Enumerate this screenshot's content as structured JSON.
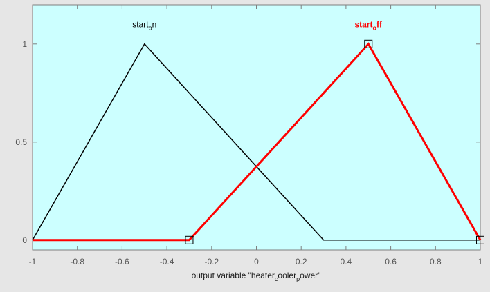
{
  "colors": {
    "figure_bg": "#e6e6e6",
    "plot_bg": "#ccffff",
    "axis": "#7f7f7f",
    "selected": "#ff0000",
    "unselected": "#000000"
  },
  "chart_data": {
    "type": "line",
    "xlabel_parts": [
      {
        "t": "output variable \"heater",
        "sub": false
      },
      {
        "t": "c",
        "sub": true
      },
      {
        "t": "ooler",
        "sub": false
      },
      {
        "t": "p",
        "sub": true
      },
      {
        "t": "ower\"",
        "sub": false
      }
    ],
    "xlim": [
      -1,
      1
    ],
    "ylim": [
      -0.05,
      1.2
    ],
    "xticks": [
      -1,
      -0.8,
      -0.6,
      -0.4,
      -0.2,
      0,
      0.2,
      0.4,
      0.6,
      0.8,
      1
    ],
    "xtick_labels": [
      "-1",
      "-0.8",
      "-0.6",
      "-0.4",
      "-0.2",
      "0",
      "0.2",
      "0.4",
      "0.6",
      "0.8",
      "1"
    ],
    "yticks": [
      0,
      0.5,
      1
    ],
    "ytick_labels": [
      "0",
      "0.5",
      "1"
    ],
    "grid": false,
    "series": [
      {
        "label_parts": [
          {
            "t": "start",
            "sub": false
          },
          {
            "t": "o",
            "sub": true
          },
          {
            "t": "n",
            "sub": false
          }
        ],
        "selected": false,
        "points": [
          [
            -1,
            0
          ],
          [
            -0.5,
            1
          ],
          [
            0.3,
            0
          ],
          [
            1,
            0
          ]
        ],
        "label_at": [
          -0.5,
          1.1
        ],
        "markers": []
      },
      {
        "label_parts": [
          {
            "t": "start",
            "sub": false
          },
          {
            "t": "o",
            "sub": true
          },
          {
            "t": "ff",
            "sub": false
          }
        ],
        "selected": true,
        "points": [
          [
            -1,
            0
          ],
          [
            -0.3,
            0
          ],
          [
            0.5,
            1
          ],
          [
            1,
            0
          ]
        ],
        "label_at": [
          0.5,
          1.1
        ],
        "markers": [
          [
            -0.3,
            0
          ],
          [
            0.5,
            1
          ],
          [
            1,
            0
          ]
        ]
      }
    ]
  }
}
